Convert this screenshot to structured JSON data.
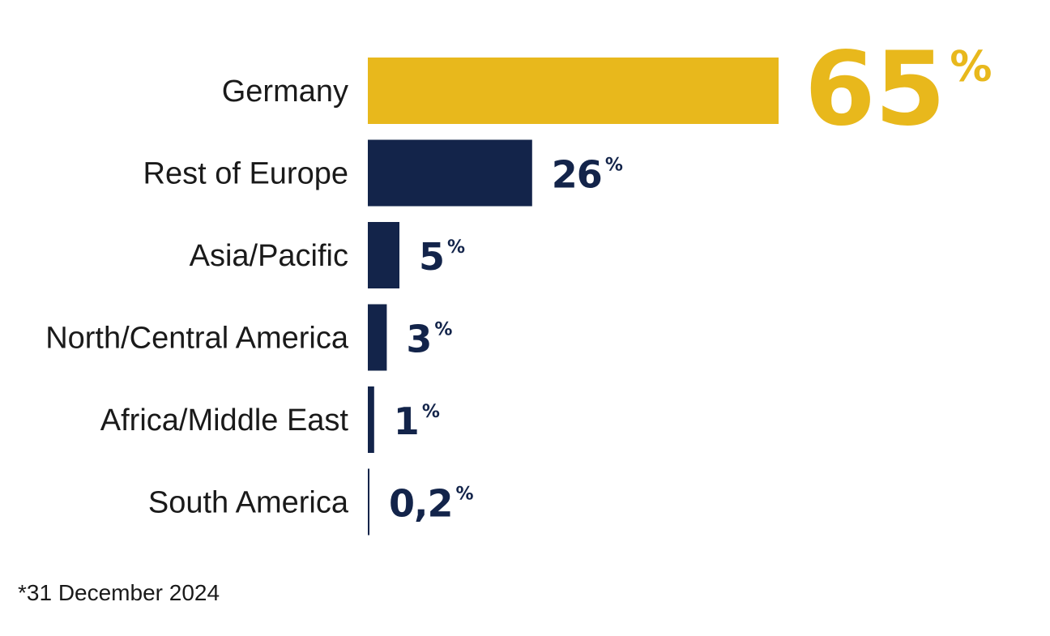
{
  "chart_data": {
    "type": "bar",
    "orientation": "horizontal",
    "categories": [
      "Germany",
      "Rest of Europe",
      "Asia/Pacific",
      "North/Central America",
      "Africa/Middle East",
      "South America"
    ],
    "values": [
      65,
      26,
      5,
      3,
      1,
      0.2
    ],
    "value_labels": [
      "65",
      "26",
      "5",
      "3",
      "1",
      "0,2"
    ],
    "unit": "%",
    "highlight_index": 0,
    "colors": {
      "highlight": "#E8B81C",
      "default": "#13244A"
    },
    "grid": false,
    "legend": "none"
  },
  "footnote": "*31 December 2024"
}
